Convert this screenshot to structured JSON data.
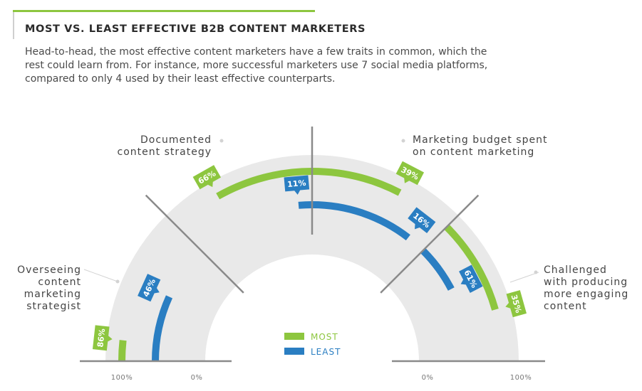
{
  "header": {
    "title": "MOST VS. LEAST EFFECTIVE B2B CONTENT MARKETERS",
    "intro": "Head-to-head, the most effective content marketers have a few traits in common, which the rest could learn from. For instance, more successful marketers use 7 social media platforms, compared to only 4 used by their least effective counterparts."
  },
  "colors": {
    "most": "#8dc63f",
    "least": "#2a7ec2",
    "band": "#e9e9e9",
    "divider": "#8a8a8a"
  },
  "chart_data": {
    "type": "radial-bar",
    "legend_position": "bottom-center",
    "series": [
      {
        "name": "MOST",
        "color": "#8dc63f"
      },
      {
        "name": "LEAST",
        "color": "#2a7ec2"
      }
    ],
    "categories": [
      {
        "label_lines": [
          "Overseeing",
          "content",
          "marketing",
          "strategist"
        ],
        "half": "left",
        "most": 86,
        "least": 46
      },
      {
        "label_lines": [
          "Documented",
          "content strategy"
        ],
        "half": "left",
        "most": 66,
        "least": 11
      },
      {
        "label_lines": [
          "Marketing budget spent",
          "on content marketing"
        ],
        "half": "right",
        "most": 39,
        "least": 16
      },
      {
        "label_lines": [
          "Challenged",
          "with producing",
          "more engaging",
          "content"
        ],
        "half": "right",
        "most": 35,
        "least": 61
      }
    ],
    "value_format": "{v}%",
    "ticks": [
      "100%",
      "0%",
      "0%",
      "100%"
    ]
  }
}
